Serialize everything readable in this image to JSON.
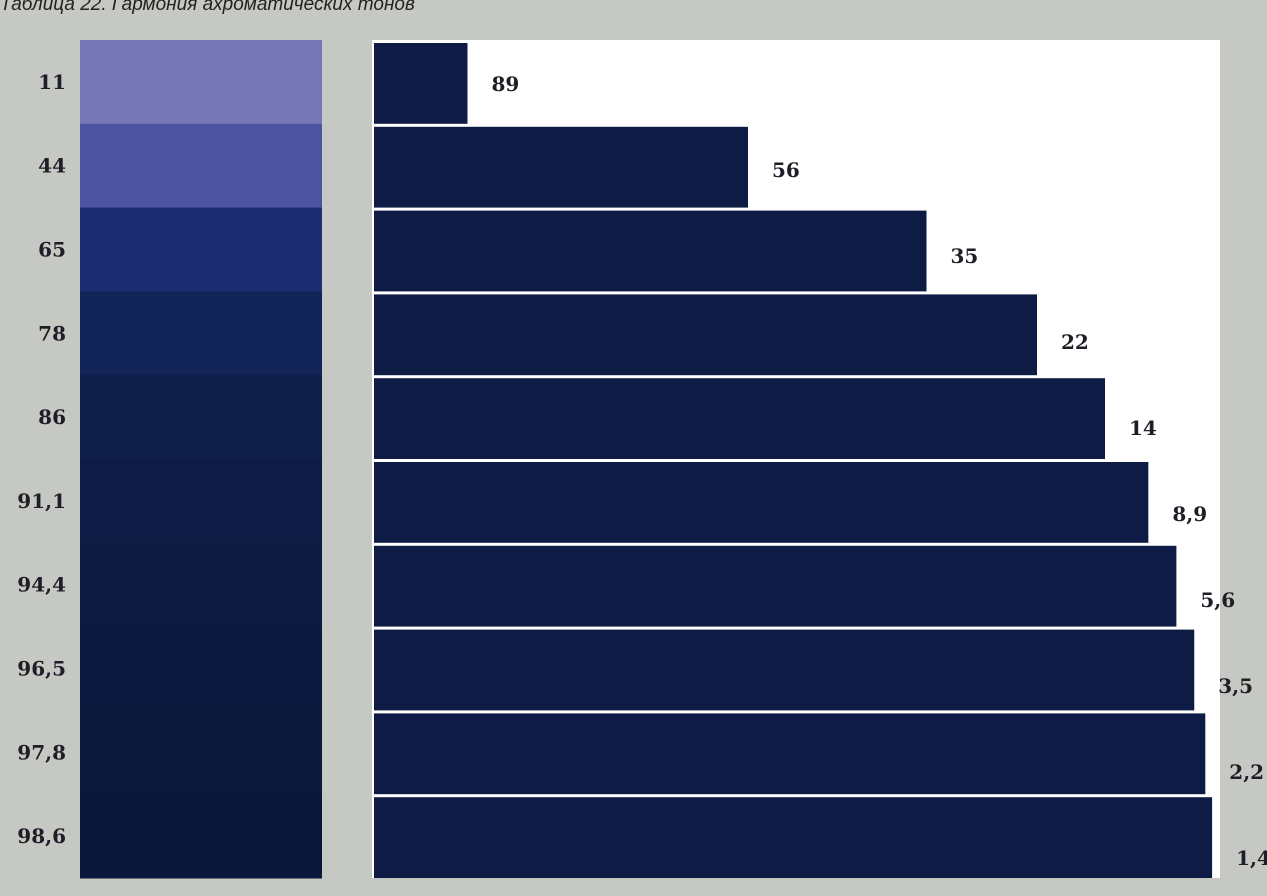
{
  "caption": "Таблица 22. Гармония ахроматических тонов",
  "chart_data": {
    "type": "bar",
    "orientation": "horizontal",
    "categories": [
      "11",
      "44",
      "65",
      "78",
      "86",
      "91,1",
      "94,4",
      "96,5",
      "97,8",
      "98,6"
    ],
    "values": [
      89,
      56,
      35,
      22,
      14,
      8.9,
      5.6,
      3.5,
      2.2,
      1.4
    ],
    "value_labels": [
      "89",
      "56",
      "35",
      "22",
      "14",
      "8,9",
      "5,6",
      "3,5",
      "2,2",
      "1,4"
    ],
    "swatch_colors": [
      "#7677b7",
      "#4c53a0",
      "#1e2c73",
      "#132458",
      "#0f1e49",
      "#0e1b44",
      "#0d1a41",
      "#0c193e",
      "#0c183c",
      "#0b173a"
    ],
    "bar_color": "#0e1c45",
    "panel_color": "#ffffff",
    "background_color": "#c6c8c3",
    "xlim": [
      0,
      100
    ],
    "title": "",
    "xlabel": "",
    "ylabel": ""
  }
}
